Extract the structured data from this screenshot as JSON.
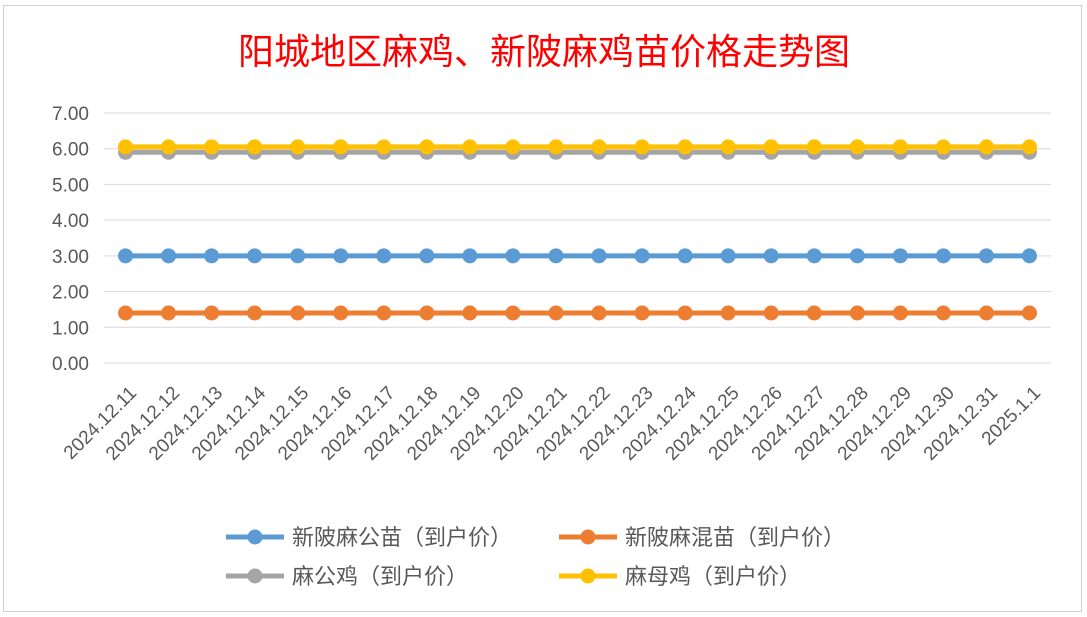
{
  "chart_data": {
    "type": "line",
    "title": "阳城地区麻鸡、新陂麻鸡苗价格走势图",
    "xlabel": "",
    "ylabel": "",
    "ylim": [
      0,
      7
    ],
    "yticks": [
      "0.00",
      "1.00",
      "2.00",
      "3.00",
      "4.00",
      "5.00",
      "6.00",
      "7.00"
    ],
    "grid": true,
    "legend_position": "bottom",
    "categories": [
      "2024.12.11",
      "2024.12.12",
      "2024.12.13",
      "2024.12.14",
      "2024.12.15",
      "2024.12.16",
      "2024.12.17",
      "2024.12.18",
      "2024.12.19",
      "2024.12.20",
      "2024.12.21",
      "2024.12.22",
      "2024.12.23",
      "2024.12.24",
      "2024.12.25",
      "2024.12.26",
      "2024.12.27",
      "2024.12.28",
      "2024.12.29",
      "2024.12.30",
      "2024.12.31",
      "2025.1.1"
    ],
    "series": [
      {
        "name": "新陂麻公苗（到户价）",
        "color": "#5b9bd5",
        "values": [
          3,
          3,
          3,
          3,
          3,
          3,
          3,
          3,
          3,
          3,
          3,
          3,
          3,
          3,
          3,
          3,
          3,
          3,
          3,
          3,
          3,
          3
        ]
      },
      {
        "name": "新陂麻混苗（到户价）",
        "color": "#ed7d31",
        "values": [
          1.4,
          1.4,
          1.4,
          1.4,
          1.4,
          1.4,
          1.4,
          1.4,
          1.4,
          1.4,
          1.4,
          1.4,
          1.4,
          1.4,
          1.4,
          1.4,
          1.4,
          1.4,
          1.4,
          1.4,
          1.4,
          1.4
        ]
      },
      {
        "name": "麻公鸡（到户价）",
        "color": "#a5a5a5",
        "values": [
          5.9,
          5.9,
          5.9,
          5.9,
          5.9,
          5.9,
          5.9,
          5.9,
          5.9,
          5.9,
          5.9,
          5.9,
          5.9,
          5.9,
          5.9,
          5.9,
          5.9,
          5.9,
          5.9,
          5.9,
          5.9,
          5.9
        ]
      },
      {
        "name": "麻母鸡（到户价）",
        "color": "#ffc000",
        "values": [
          6.05,
          6.05,
          6.05,
          6.05,
          6.05,
          6.05,
          6.05,
          6.05,
          6.05,
          6.05,
          6.05,
          6.05,
          6.05,
          6.05,
          6.05,
          6.05,
          6.05,
          6.05,
          6.05,
          6.05,
          6.05,
          6.05
        ]
      }
    ],
    "title_color": "#ff0000"
  }
}
